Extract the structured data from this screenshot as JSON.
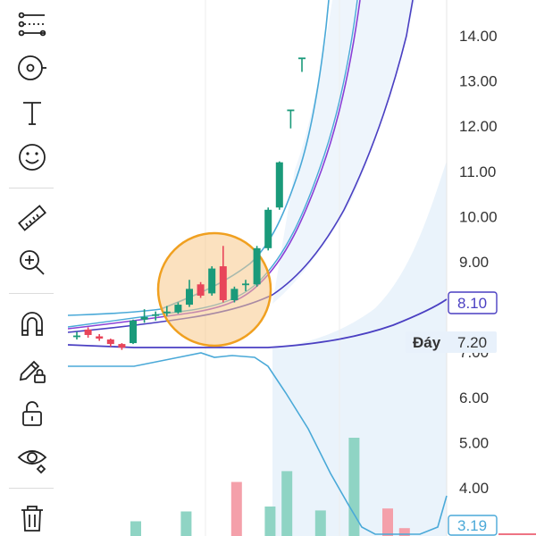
{
  "toolbar": {
    "tools": [
      {
        "name": "trend-lines-icon",
        "kind": "lines"
      },
      {
        "name": "fib-tool-icon",
        "kind": "fib"
      },
      {
        "name": "text-tool-icon",
        "kind": "text"
      },
      {
        "name": "emoji-icon",
        "kind": "emoji"
      },
      {
        "name": "ruler-icon",
        "kind": "ruler"
      },
      {
        "name": "zoom-in-icon",
        "kind": "zoom"
      },
      {
        "name": "magnet-icon",
        "kind": "magnet"
      },
      {
        "name": "lock-drawing-icon",
        "kind": "pencil-lock"
      },
      {
        "name": "lock-icon",
        "kind": "lock"
      },
      {
        "name": "eye-icon",
        "kind": "eye"
      },
      {
        "name": "trash-icon",
        "kind": "trash"
      }
    ]
  },
  "price_axis": {
    "ticks": [
      "14.00",
      "13.00",
      "12.00",
      "11.00",
      "10.00",
      "9.00",
      "8.00",
      "7.00",
      "6.00",
      "5.00",
      "4.00"
    ],
    "price_tag": {
      "value": "8.10",
      "color": "#4a3fc2"
    },
    "floor_tag": {
      "label": "Đáy",
      "value": "7.20"
    },
    "indicator_tag": {
      "value": "3.19",
      "color": "#4aa9d8"
    }
  },
  "colors": {
    "up": "#1a9a7a",
    "down": "#e8455a",
    "volume_up": "#8fd4c4",
    "volume_down": "#f4a0aa",
    "highlight_stroke": "#f0a020",
    "highlight_fill": "#f7c98a",
    "band_fill": "#eaf3fb"
  },
  "chart_data": {
    "type": "candlestick",
    "y_ticks": [
      14,
      13,
      12,
      11,
      10,
      9,
      8,
      7,
      6,
      5,
      4
    ],
    "candles": [
      {
        "o": 7.35,
        "c": 7.35,
        "h": 7.45,
        "l": 7.28
      },
      {
        "o": 7.5,
        "c": 7.38,
        "h": 7.55,
        "l": 7.32
      },
      {
        "o": 7.35,
        "c": 7.3,
        "h": 7.4,
        "l": 7.25
      },
      {
        "o": 7.28,
        "c": 7.18,
        "h": 7.3,
        "l": 7.12
      },
      {
        "o": 7.18,
        "c": 7.1,
        "h": 7.2,
        "l": 7.05
      },
      {
        "o": 7.2,
        "c": 7.7,
        "h": 7.72,
        "l": 7.18
      },
      {
        "o": 7.72,
        "c": 7.78,
        "h": 7.95,
        "l": 7.65
      },
      {
        "o": 7.8,
        "c": 7.82,
        "h": 7.9,
        "l": 7.7
      },
      {
        "o": 7.85,
        "c": 7.88,
        "h": 8.02,
        "l": 7.8
      },
      {
        "o": 7.88,
        "c": 8.05,
        "h": 8.1,
        "l": 7.85
      },
      {
        "o": 8.05,
        "c": 8.4,
        "h": 8.6,
        "l": 8.0
      },
      {
        "o": 8.5,
        "c": 8.25,
        "h": 8.55,
        "l": 8.2
      },
      {
        "o": 8.3,
        "c": 8.85,
        "h": 8.9,
        "l": 8.25
      },
      {
        "o": 8.9,
        "c": 8.15,
        "h": 9.35,
        "l": 8.1
      },
      {
        "o": 8.15,
        "c": 8.4,
        "h": 8.45,
        "l": 8.1
      },
      {
        "o": 8.5,
        "c": 8.5,
        "h": 8.6,
        "l": 8.35
      },
      {
        "o": 8.5,
        "c": 9.3,
        "h": 9.35,
        "l": 8.45
      },
      {
        "o": 9.3,
        "c": 10.15,
        "h": 10.2,
        "l": 9.25
      },
      {
        "o": 10.2,
        "c": 11.2,
        "h": 11.22,
        "l": 10.15
      },
      {
        "o": 12.35,
        "c": 12.35,
        "h": 12.35,
        "l": 11.95
      },
      {
        "o": 13.5,
        "c": 13.5,
        "h": 13.5,
        "l": 13.2
      }
    ],
    "volume": [
      {
        "i": 5,
        "v": 0.15,
        "up": true
      },
      {
        "i": 8,
        "v": 0.25,
        "up": true
      },
      {
        "i": 11,
        "v": 0.55,
        "up": false
      },
      {
        "i": 13,
        "v": 0.3,
        "up": true
      },
      {
        "i": 14,
        "v": 0.66,
        "up": true
      },
      {
        "i": 16,
        "v": 0.26,
        "up": true
      },
      {
        "i": 18,
        "v": 1.0,
        "up": true
      },
      {
        "i": 20,
        "v": 0.28,
        "up": false
      },
      {
        "i": 21,
        "v": 0.08,
        "up": false
      }
    ]
  }
}
